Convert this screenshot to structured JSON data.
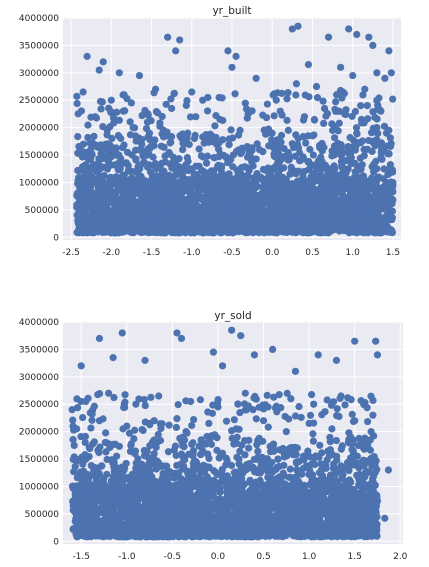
{
  "chart_data": [
    {
      "type": "scatter",
      "title": "yr_built",
      "xlabel": "",
      "ylabel": "",
      "xlim": [
        -2.6,
        1.6
      ],
      "ylim": [
        -50000,
        4000000
      ],
      "x_ticks": [
        -2.5,
        -2.0,
        -1.5,
        -1.0,
        -0.5,
        0.0,
        0.5,
        1.0,
        1.5
      ],
      "x_tick_labels": [
        "-2.5",
        "-2.0",
        "-1.5",
        "-1.0",
        "-0.5",
        "0.0",
        "0.5",
        "1.0",
        "1.5"
      ],
      "y_ticks": [
        0,
        500000,
        1000000,
        1500000,
        2000000,
        2500000,
        3000000,
        3500000,
        4000000
      ],
      "y_tick_labels": [
        "0",
        "500000",
        "1000000",
        "1500000",
        "2000000",
        "2500000",
        "3000000",
        "3500000",
        "4000000"
      ],
      "grid": true,
      "color": "#4c72b0",
      "x_range": [
        -2.43,
        1.5
      ],
      "y_dense_range": [
        80000,
        1000000
      ],
      "points": [
        [
          -2.3,
          3300000
        ],
        [
          -2.15,
          3050000
        ],
        [
          -2.1,
          3200000
        ],
        [
          -1.9,
          3000000
        ],
        [
          -1.65,
          2950000
        ],
        [
          -1.3,
          3650000
        ],
        [
          -1.15,
          3600000
        ],
        [
          -1.2,
          3400000
        ],
        [
          -0.55,
          3400000
        ],
        [
          -0.45,
          3300000
        ],
        [
          -0.5,
          3100000
        ],
        [
          0.25,
          3800000
        ],
        [
          0.32,
          3850000
        ],
        [
          0.45,
          3150000
        ],
        [
          0.7,
          3650000
        ],
        [
          0.85,
          3100000
        ],
        [
          0.95,
          3800000
        ],
        [
          1.05,
          3700000
        ],
        [
          1.2,
          3650000
        ],
        [
          1.25,
          3500000
        ],
        [
          1.3,
          3000000
        ],
        [
          1.45,
          3400000
        ],
        [
          -2.35,
          2650000
        ],
        [
          -2.0,
          2500000
        ],
        [
          -1.75,
          2450000
        ],
        [
          -1.45,
          2700000
        ],
        [
          -1.0,
          2650000
        ],
        [
          -0.8,
          2550000
        ],
        [
          -0.2,
          2900000
        ],
        [
          0.05,
          2500000
        ],
        [
          0.3,
          2800000
        ],
        [
          0.55,
          2750000
        ],
        [
          0.8,
          2600000
        ],
        [
          1.0,
          2950000
        ],
        [
          1.15,
          2700000
        ],
        [
          1.4,
          2900000
        ],
        [
          1.48,
          3000000
        ],
        [
          -2.2,
          2200000
        ],
        [
          -1.85,
          2300000
        ],
        [
          -1.55,
          2100000
        ],
        [
          -1.25,
          2350000
        ],
        [
          -0.95,
          2200000
        ],
        [
          -0.65,
          2150000
        ],
        [
          -0.3,
          2250000
        ],
        [
          0.1,
          2300000
        ],
        [
          0.4,
          2200000
        ],
        [
          0.65,
          2350000
        ],
        [
          0.9,
          2250000
        ],
        [
          1.1,
          2400000
        ],
        [
          1.35,
          2300000
        ],
        [
          -2.05,
          1950000
        ],
        [
          -1.7,
          1850000
        ],
        [
          -1.35,
          1950000
        ],
        [
          -1.05,
          1900000
        ],
        [
          -0.75,
          1850000
        ],
        [
          -0.4,
          1950000
        ],
        [
          -0.05,
          1900000
        ],
        [
          0.2,
          1950000
        ],
        [
          0.5,
          1850000
        ],
        [
          0.75,
          1950000
        ],
        [
          1.05,
          1900000
        ],
        [
          1.3,
          2000000
        ],
        [
          1.45,
          1950000
        ]
      ]
    },
    {
      "type": "scatter",
      "title": "yr_sold",
      "xlabel": "",
      "ylabel": "",
      "xlim": [
        -1.7,
        2.03
      ],
      "ylim": [
        -50000,
        4000000
      ],
      "x_ticks": [
        -1.5,
        -1.0,
        -0.5,
        0.0,
        0.5,
        1.0,
        1.5,
        2.0
      ],
      "x_tick_labels": [
        "-1.5",
        "-1.0",
        "-0.5",
        "0.0",
        "0.5",
        "1.0",
        "1.5",
        "2.0"
      ],
      "y_ticks": [
        0,
        500000,
        1000000,
        1500000,
        2000000,
        2500000,
        3000000,
        3500000,
        4000000
      ],
      "y_tick_labels": [
        "0",
        "500000",
        "1000000",
        "1500000",
        "2000000",
        "2500000",
        "3000000",
        "3500000",
        "4000000"
      ],
      "grid": true,
      "color": "#4c72b0",
      "x_range": [
        -1.6,
        1.75
      ],
      "y_dense_range": [
        80000,
        1000000
      ],
      "points": [
        [
          -1.5,
          3200000
        ],
        [
          -1.3,
          3700000
        ],
        [
          -1.05,
          3800000
        ],
        [
          -1.15,
          3350000
        ],
        [
          -0.8,
          3300000
        ],
        [
          -0.45,
          3800000
        ],
        [
          -0.4,
          3700000
        ],
        [
          -0.05,
          3450000
        ],
        [
          0.05,
          3200000
        ],
        [
          0.15,
          3850000
        ],
        [
          0.25,
          3750000
        ],
        [
          0.4,
          3400000
        ],
        [
          0.6,
          3500000
        ],
        [
          0.85,
          3100000
        ],
        [
          1.1,
          3400000
        ],
        [
          1.3,
          3300000
        ],
        [
          1.5,
          3650000
        ],
        [
          1.73,
          3650000
        ],
        [
          1.75,
          3400000
        ],
        [
          1.87,
          1300000
        ],
        [
          1.83,
          420000
        ],
        [
          -1.6,
          2400000
        ],
        [
          -1.45,
          2550000
        ],
        [
          -1.2,
          2700000
        ],
        [
          -0.9,
          2500000
        ],
        [
          -0.65,
          2650000
        ],
        [
          -0.3,
          2550000
        ],
        [
          0.0,
          2450000
        ],
        [
          0.3,
          2700000
        ],
        [
          0.55,
          2450000
        ],
        [
          0.8,
          2600000
        ],
        [
          1.05,
          2500000
        ],
        [
          1.35,
          2650000
        ],
        [
          1.6,
          2500000
        ],
        [
          1.7,
          2300000
        ],
        [
          -1.55,
          2050000
        ],
        [
          -1.3,
          2200000
        ],
        [
          -1.0,
          2100000
        ],
        [
          -0.7,
          2200000
        ],
        [
          -0.35,
          2000000
        ],
        [
          -0.1,
          2150000
        ],
        [
          0.2,
          2050000
        ],
        [
          0.5,
          2200000
        ],
        [
          0.75,
          2000000
        ],
        [
          1.0,
          2150000
        ],
        [
          1.25,
          2050000
        ],
        [
          1.5,
          2200000
        ],
        [
          1.68,
          2000000
        ]
      ]
    }
  ]
}
